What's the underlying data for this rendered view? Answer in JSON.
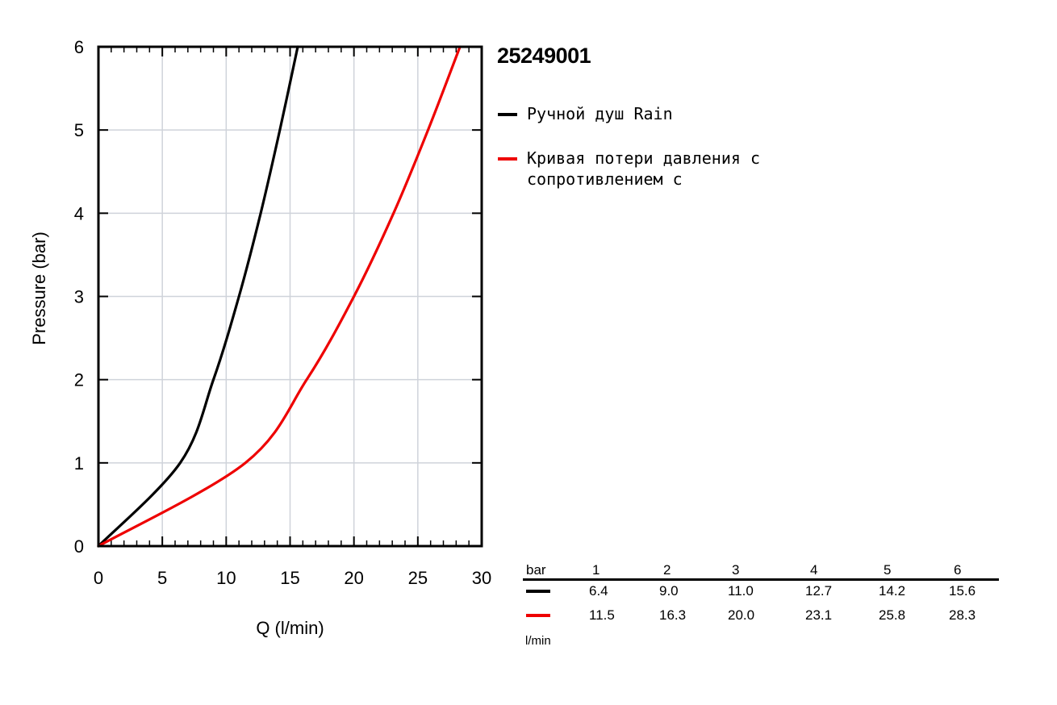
{
  "chart_data": {
    "type": "line",
    "title": "25249001",
    "xlabel": "Q (l/min)",
    "ylabel": "Pressure (bar)",
    "xlim": [
      0,
      30
    ],
    "ylim": [
      0,
      6
    ],
    "x_ticks": [
      "0",
      "5",
      "10",
      "15",
      "20",
      "25",
      "30"
    ],
    "y_ticks": [
      "0",
      "1",
      "2",
      "3",
      "4",
      "5",
      "6"
    ],
    "grid": true,
    "legend_position": "right",
    "series": [
      {
        "name": "Ручной душ Rain",
        "color": "#000000",
        "points": [
          {
            "x": 0,
            "y": 0
          },
          {
            "x": 6.4,
            "y": 1
          },
          {
            "x": 9.0,
            "y": 2
          },
          {
            "x": 11.0,
            "y": 3
          },
          {
            "x": 12.7,
            "y": 4
          },
          {
            "x": 14.2,
            "y": 5
          },
          {
            "x": 15.6,
            "y": 6
          }
        ]
      },
      {
        "name": "Кривая потери давления с сопротивлением с",
        "color": "#ee0000",
        "points": [
          {
            "x": 0,
            "y": 0
          },
          {
            "x": 11.5,
            "y": 1
          },
          {
            "x": 16.3,
            "y": 2
          },
          {
            "x": 20.0,
            "y": 3
          },
          {
            "x": 23.1,
            "y": 4
          },
          {
            "x": 25.8,
            "y": 5
          },
          {
            "x": 28.3,
            "y": 6
          }
        ]
      }
    ]
  },
  "table": {
    "header_label": "bar",
    "columns": [
      "1",
      "2",
      "3",
      "4",
      "5",
      "6"
    ],
    "rows": [
      {
        "color": "#000000",
        "values": [
          "6.4",
          "9.0",
          "11.0",
          "12.7",
          "14.2",
          "15.6"
        ]
      },
      {
        "color": "#ee0000",
        "values": [
          "11.5",
          "16.3",
          "20.0",
          "23.1",
          "25.8",
          "28.3"
        ]
      }
    ],
    "unit_label": "l/min"
  }
}
